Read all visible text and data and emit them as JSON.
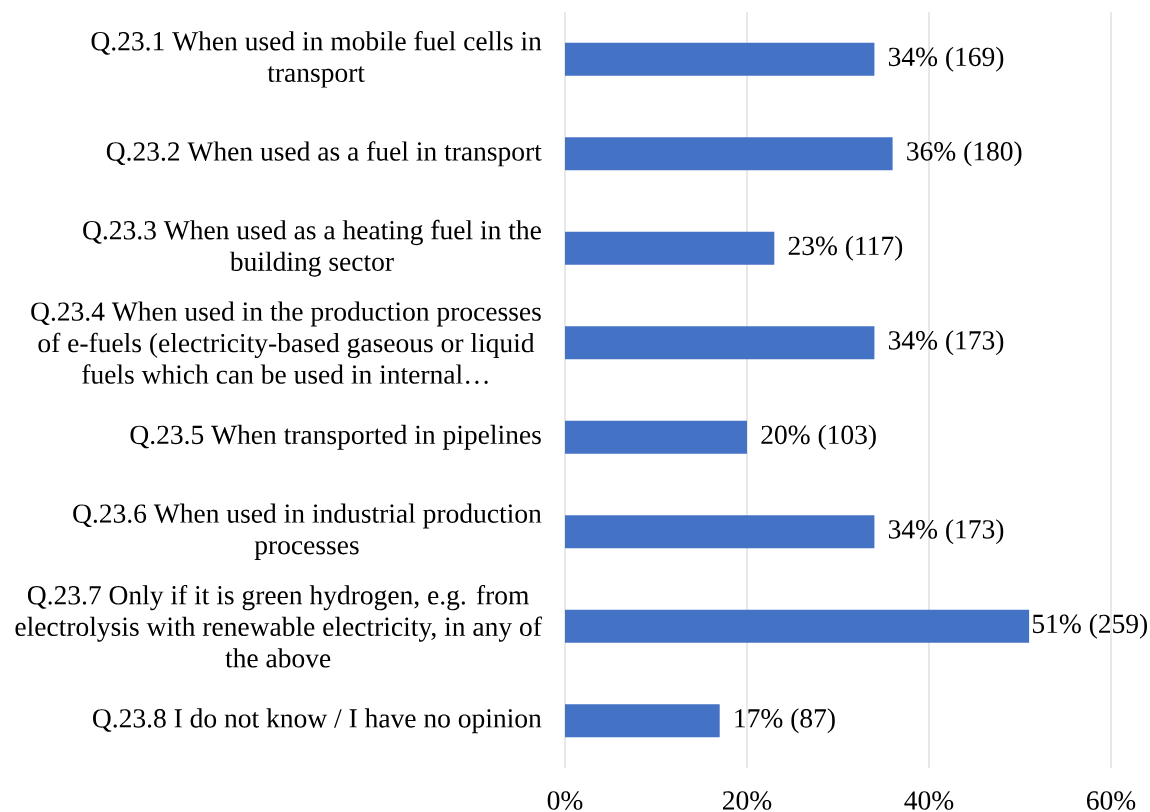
{
  "chart_data": {
    "type": "bar",
    "orientation": "horizontal",
    "categories": [
      "Q.23.1 When used in mobile fuel cells in transport",
      "Q.23.2 When used as a fuel in transport",
      "Q.23.3 When used as a heating fuel in the building sector",
      "Q.23.4 When used in the production processes of e-fuels (electricity-based gaseous or liquid fuels which can be used in internal…",
      "Q.23.5 When transported in pipelines",
      "Q.23.6 When used in industrial production processes",
      "Q.23.7 Only if it is green hydrogen, e.g. from electrolysis with renewable electricity, in any of the above",
      "Q.23.8 I do not know / I have no opinion"
    ],
    "values": [
      34,
      36,
      23,
      34,
      20,
      34,
      51,
      17
    ],
    "value_labels": [
      "34% (169)",
      "36% (180)",
      "23% (117)",
      "34% (173)",
      "20% (103)",
      "34% (173)",
      "51% (259)",
      "17% (87)"
    ],
    "color": "#4472c4",
    "xlim": [
      0,
      60
    ],
    "xticks": [
      {
        "value": 0,
        "label": "0%"
      },
      {
        "value": 20,
        "label": "20%"
      },
      {
        "value": 40,
        "label": "40%"
      },
      {
        "value": 60,
        "label": "60%"
      }
    ],
    "grid": "x"
  }
}
